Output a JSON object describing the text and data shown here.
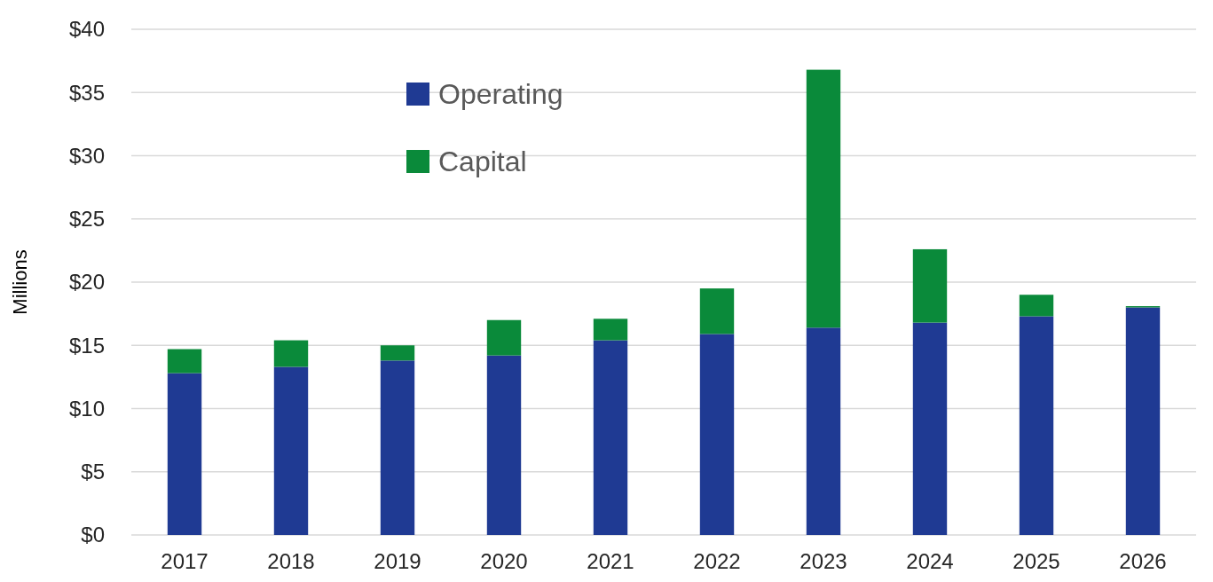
{
  "chart_data": {
    "type": "bar",
    "stacked": true,
    "ylabel": "Millions",
    "categories": [
      "2017",
      "2018",
      "2019",
      "2020",
      "2021",
      "2022",
      "2023",
      "2024",
      "2025",
      "2026"
    ],
    "series": [
      {
        "name": "Operating",
        "color": "#1f3a93",
        "values": [
          12.8,
          13.3,
          13.8,
          14.2,
          15.4,
          15.9,
          16.4,
          16.8,
          17.3,
          18.0
        ]
      },
      {
        "name": "Capital",
        "color": "#0a8a3a",
        "values": [
          1.9,
          2.1,
          1.2,
          2.8,
          1.7,
          3.6,
          20.4,
          5.8,
          1.7,
          0.1
        ]
      }
    ],
    "ylim": [
      0,
      40
    ],
    "yticks": [
      {
        "value": 0,
        "label": "$0"
      },
      {
        "value": 5,
        "label": "$5"
      },
      {
        "value": 10,
        "label": "$10"
      },
      {
        "value": 15,
        "label": "$15"
      },
      {
        "value": 20,
        "label": "$20"
      },
      {
        "value": 25,
        "label": "$25"
      },
      {
        "value": 30,
        "label": "$30"
      },
      {
        "value": 35,
        "label": "$35"
      },
      {
        "value": 40,
        "label": "$40"
      }
    ],
    "grid": "y",
    "legend": "top left"
  }
}
